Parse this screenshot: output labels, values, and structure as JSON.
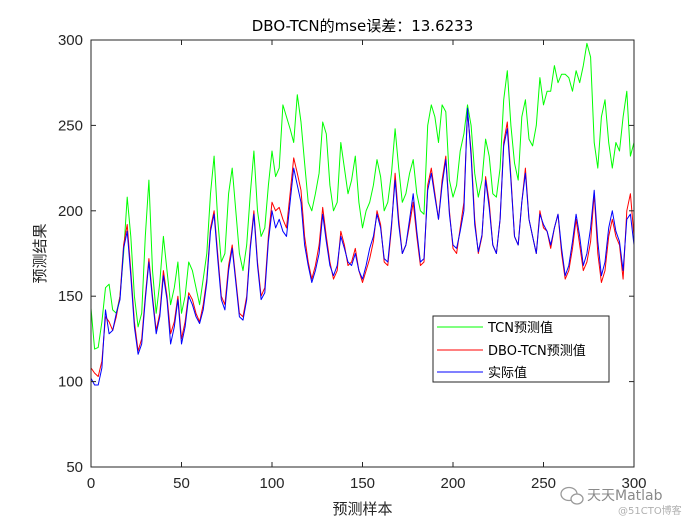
{
  "chart_data": {
    "type": "line",
    "title": "DBO-TCN的mse误差：13.6233",
    "xlabel": "预测样本",
    "ylabel": "预测结果",
    "xlim": [
      0,
      300
    ],
    "ylim": [
      50,
      300
    ],
    "xticks": [
      0,
      50,
      100,
      150,
      200,
      250,
      300
    ],
    "yticks": [
      50,
      100,
      150,
      200,
      250,
      300
    ],
    "grid": false,
    "legend_position": "lower-right",
    "series": [
      {
        "name": "TCN预测值",
        "color": "#00ff00",
        "x": [
          0,
          2,
          4,
          6,
          8,
          10,
          12,
          14,
          16,
          18,
          20,
          22,
          24,
          26,
          28,
          30,
          32,
          34,
          36,
          38,
          40,
          42,
          44,
          46,
          48,
          50,
          52,
          54,
          56,
          58,
          60,
          62,
          64,
          66,
          68,
          70,
          72,
          74,
          76,
          78,
          80,
          82,
          84,
          86,
          88,
          90,
          92,
          94,
          96,
          98,
          100,
          102,
          104,
          106,
          108,
          110,
          112,
          114,
          116,
          118,
          120,
          122,
          124,
          126,
          128,
          130,
          132,
          134,
          136,
          138,
          140,
          142,
          144,
          146,
          148,
          150,
          152,
          154,
          156,
          158,
          160,
          162,
          164,
          166,
          168,
          170,
          172,
          174,
          176,
          178,
          180,
          182,
          184,
          186,
          188,
          190,
          192,
          194,
          196,
          198,
          200,
          202,
          204,
          206,
          208,
          210,
          212,
          214,
          216,
          218,
          220,
          222,
          224,
          226,
          228,
          230,
          232,
          234,
          236,
          238,
          240,
          242,
          244,
          246,
          248,
          250,
          252,
          254,
          256,
          258,
          260,
          262,
          264,
          266,
          268,
          270,
          272,
          274,
          276,
          278,
          280,
          282,
          284,
          286,
          288,
          290,
          292,
          294,
          296,
          298,
          300
        ],
        "values": [
          143,
          119,
          120,
          135,
          155,
          157,
          142,
          140,
          150,
          175,
          208,
          185,
          150,
          132,
          140,
          185,
          218,
          165,
          140,
          158,
          185,
          165,
          145,
          155,
          170,
          140,
          150,
          170,
          165,
          155,
          145,
          160,
          175,
          210,
          232,
          195,
          170,
          175,
          210,
          225,
          200,
          175,
          165,
          180,
          210,
          235,
          200,
          185,
          190,
          215,
          235,
          220,
          225,
          262,
          255,
          248,
          240,
          268,
          252,
          228,
          205,
          200,
          210,
          222,
          252,
          245,
          215,
          200,
          205,
          240,
          225,
          210,
          218,
          232,
          205,
          190,
          200,
          205,
          215,
          230,
          220,
          200,
          205,
          222,
          248,
          225,
          205,
          210,
          222,
          230,
          210,
          200,
          198,
          250,
          262,
          255,
          240,
          262,
          258,
          218,
          208,
          215,
          235,
          245,
          262,
          250,
          222,
          208,
          218,
          242,
          232,
          210,
          208,
          225,
          265,
          282,
          250,
          228,
          218,
          255,
          265,
          242,
          238,
          250,
          278,
          262,
          270,
          270,
          285,
          275,
          280,
          280,
          278,
          270,
          282,
          275,
          285,
          298,
          290,
          240,
          225,
          255,
          265,
          240,
          225,
          240,
          235,
          255,
          270,
          232,
          240
        ]
      },
      {
        "name": "DBO-TCN预测值",
        "color": "#ff0000",
        "x": [
          0,
          2,
          4,
          6,
          8,
          10,
          12,
          14,
          16,
          18,
          20,
          22,
          24,
          26,
          28,
          30,
          32,
          34,
          36,
          38,
          40,
          42,
          44,
          46,
          48,
          50,
          52,
          54,
          56,
          58,
          60,
          62,
          64,
          66,
          68,
          70,
          72,
          74,
          76,
          78,
          80,
          82,
          84,
          86,
          88,
          90,
          92,
          94,
          96,
          98,
          100,
          102,
          104,
          106,
          108,
          110,
          112,
          114,
          116,
          118,
          120,
          122,
          124,
          126,
          128,
          130,
          132,
          134,
          136,
          138,
          140,
          142,
          144,
          146,
          148,
          150,
          152,
          154,
          156,
          158,
          160,
          162,
          164,
          166,
          168,
          170,
          172,
          174,
          176,
          178,
          180,
          182,
          184,
          186,
          188,
          190,
          192,
          194,
          196,
          198,
          200,
          202,
          204,
          206,
          208,
          210,
          212,
          214,
          216,
          218,
          220,
          222,
          224,
          226,
          228,
          230,
          232,
          234,
          236,
          238,
          240,
          242,
          244,
          246,
          248,
          250,
          252,
          254,
          256,
          258,
          260,
          262,
          264,
          266,
          268,
          270,
          272,
          274,
          276,
          278,
          280,
          282,
          284,
          286,
          288,
          290,
          292,
          294,
          296,
          298,
          300
        ],
        "values": [
          108,
          105,
          103,
          112,
          138,
          135,
          130,
          138,
          150,
          180,
          192,
          165,
          135,
          118,
          125,
          150,
          172,
          150,
          130,
          140,
          165,
          150,
          128,
          135,
          150,
          125,
          135,
          152,
          148,
          140,
          135,
          145,
          160,
          190,
          200,
          175,
          150,
          145,
          168,
          180,
          160,
          140,
          138,
          150,
          180,
          200,
          170,
          150,
          155,
          185,
          205,
          200,
          202,
          195,
          190,
          210,
          231,
          222,
          212,
          185,
          170,
          160,
          168,
          180,
          202,
          185,
          170,
          160,
          165,
          188,
          180,
          168,
          170,
          178,
          165,
          158,
          165,
          172,
          182,
          200,
          192,
          170,
          168,
          190,
          222,
          195,
          175,
          180,
          192,
          205,
          185,
          168,
          170,
          215,
          225,
          210,
          195,
          218,
          232,
          200,
          178,
          175,
          190,
          205,
          258,
          235,
          195,
          175,
          185,
          220,
          205,
          180,
          175,
          195,
          240,
          252,
          220,
          185,
          180,
          205,
          225,
          195,
          185,
          175,
          200,
          190,
          188,
          178,
          190,
          198,
          175,
          160,
          165,
          178,
          195,
          180,
          165,
          170,
          182,
          210,
          175,
          158,
          165,
          185,
          195,
          185,
          180,
          160,
          200,
          210,
          185
        ]
      },
      {
        "name": "实际值",
        "color": "#0000ff",
        "x": [
          0,
          2,
          4,
          6,
          8,
          10,
          12,
          14,
          16,
          18,
          20,
          22,
          24,
          26,
          28,
          30,
          32,
          34,
          36,
          38,
          40,
          42,
          44,
          46,
          48,
          50,
          52,
          54,
          56,
          58,
          60,
          62,
          64,
          66,
          68,
          70,
          72,
          74,
          76,
          78,
          80,
          82,
          84,
          86,
          88,
          90,
          92,
          94,
          96,
          98,
          100,
          102,
          104,
          106,
          108,
          110,
          112,
          114,
          116,
          118,
          120,
          122,
          124,
          126,
          128,
          130,
          132,
          134,
          136,
          138,
          140,
          142,
          144,
          146,
          148,
          150,
          152,
          154,
          156,
          158,
          160,
          162,
          164,
          166,
          168,
          170,
          172,
          174,
          176,
          178,
          180,
          182,
          184,
          186,
          188,
          190,
          192,
          194,
          196,
          198,
          200,
          202,
          204,
          206,
          208,
          210,
          212,
          214,
          216,
          218,
          220,
          222,
          224,
          226,
          228,
          230,
          232,
          234,
          236,
          238,
          240,
          242,
          244,
          246,
          248,
          250,
          252,
          254,
          256,
          258,
          260,
          262,
          264,
          266,
          268,
          270,
          272,
          274,
          276,
          278,
          280,
          282,
          284,
          286,
          288,
          290,
          292,
          294,
          296,
          298,
          300
        ],
        "values": [
          102,
          98,
          98,
          108,
          142,
          128,
          130,
          140,
          148,
          178,
          188,
          162,
          132,
          116,
          122,
          148,
          170,
          148,
          128,
          138,
          162,
          148,
          122,
          132,
          148,
          122,
          132,
          150,
          145,
          138,
          134,
          142,
          158,
          188,
          198,
          172,
          148,
          142,
          165,
          178,
          158,
          138,
          136,
          148,
          178,
          198,
          168,
          148,
          152,
          182,
          200,
          190,
          195,
          188,
          185,
          205,
          225,
          215,
          205,
          180,
          168,
          158,
          165,
          175,
          198,
          182,
          168,
          162,
          168,
          185,
          178,
          170,
          168,
          175,
          165,
          160,
          168,
          178,
          185,
          198,
          190,
          172,
          170,
          192,
          218,
          192,
          175,
          180,
          195,
          210,
          188,
          170,
          172,
          212,
          222,
          208,
          195,
          215,
          230,
          198,
          180,
          178,
          188,
          200,
          260,
          232,
          192,
          176,
          186,
          218,
          202,
          180,
          175,
          195,
          238,
          248,
          218,
          185,
          180,
          205,
          222,
          195,
          185,
          175,
          198,
          192,
          188,
          180,
          190,
          198,
          178,
          162,
          168,
          182,
          198,
          185,
          168,
          175,
          190,
          212,
          182,
          162,
          170,
          190,
          200,
          188,
          182,
          165,
          195,
          198,
          180
        ]
      }
    ]
  },
  "watermark": {
    "text": "天天Matlab",
    "subtext": "@51CTO博客",
    "icon": "wechat-icon"
  }
}
